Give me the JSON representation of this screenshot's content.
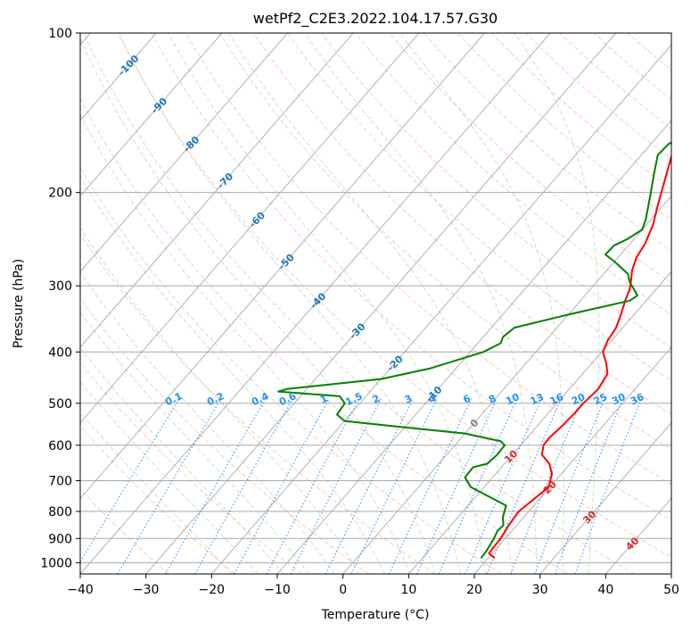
{
  "chart_data": {
    "type": "line",
    "title": "wetPf2_C2E3.2022.104.17.57.G30",
    "xlabel": "Temperature (°C)",
    "ylabel": "Pressure (hPa)",
    "xlim": [
      -40,
      50
    ],
    "ylim": [
      1050,
      100
    ],
    "x_ticks": [
      -40,
      -30,
      -20,
      -10,
      0,
      10,
      20,
      30,
      40,
      50
    ],
    "y_ticks": [
      1000,
      900,
      800,
      700,
      600,
      500,
      400,
      300,
      200,
      100
    ],
    "grid": true,
    "series": [
      {
        "name": "Temperature",
        "color": "#ff0000",
        "points": [
          [
            21,
            980
          ],
          [
            19.5,
            960
          ],
          [
            19.3,
            900
          ],
          [
            18.8,
            850
          ],
          [
            18.5,
            800
          ],
          [
            19.8,
            720
          ],
          [
            18.6,
            680
          ],
          [
            16.8,
            650
          ],
          [
            14.5,
            625
          ],
          [
            13.5,
            600
          ],
          [
            13.4,
            580
          ],
          [
            13.8,
            550
          ],
          [
            14.0,
            520
          ],
          [
            14.0,
            500
          ],
          [
            14.4,
            470
          ],
          [
            13.8,
            440
          ],
          [
            12.2,
            420
          ],
          [
            10.2,
            400
          ],
          [
            9.4,
            380
          ],
          [
            9.0,
            360
          ],
          [
            8.0,
            340
          ],
          [
            6.8,
            320
          ],
          [
            6.0,
            305
          ],
          [
            5.2,
            295
          ],
          [
            3.8,
            280
          ],
          [
            2.8,
            265
          ],
          [
            2.3,
            250
          ],
          [
            1.0,
            230
          ],
          [
            -0.5,
            215
          ],
          [
            -2.0,
            200
          ],
          [
            -3.6,
            185
          ],
          [
            -5.0,
            173
          ],
          [
            -6.6,
            160
          ],
          [
            -7.0,
            157
          ],
          [
            -4.0,
            150
          ],
          [
            -1.2,
            140
          ],
          [
            1.5,
            133
          ],
          [
            3.0,
            127
          ],
          [
            5.0,
            120
          ],
          [
            6.7,
            115
          ],
          [
            8.4,
            110
          ],
          [
            9.7,
            105
          ],
          [
            10.7,
            100
          ]
        ]
      },
      {
        "name": "Dewpoint",
        "color": "#008000",
        "points": [
          [
            18.9,
            980
          ],
          [
            18.8,
            950
          ],
          [
            18.5,
            920
          ],
          [
            18.3,
            900
          ],
          [
            17.8,
            870
          ],
          [
            18.0,
            850
          ],
          [
            16.8,
            820
          ],
          [
            15.8,
            780
          ],
          [
            8.0,
            720
          ],
          [
            5.8,
            690
          ],
          [
            5.7,
            660
          ],
          [
            7.4,
            650
          ],
          [
            7.7,
            625
          ],
          [
            7.6,
            600
          ],
          [
            6.5,
            590
          ],
          [
            0.0,
            570
          ],
          [
            -10.0,
            555
          ],
          [
            -20.0,
            540
          ],
          [
            -22.0,
            525
          ],
          [
            -22.3,
            500
          ],
          [
            -24.0,
            485
          ],
          [
            -34.0,
            475
          ],
          [
            -33.0,
            470
          ],
          [
            -20.0,
            450
          ],
          [
            -14.0,
            430
          ],
          [
            -8.0,
            400
          ],
          [
            -6.5,
            385
          ],
          [
            -7.0,
            375
          ],
          [
            -6.5,
            360
          ],
          [
            0.0,
            340
          ],
          [
            7.5,
            320
          ],
          [
            8.0,
            313
          ],
          [
            5.0,
            295
          ],
          [
            3.7,
            285
          ],
          [
            0.0,
            270
          ],
          [
            -2.3,
            262
          ],
          [
            -2.2,
            252
          ],
          [
            -1.0,
            245
          ],
          [
            0.0,
            235
          ],
          [
            -0.8,
            225
          ],
          [
            -3.0,
            205
          ],
          [
            -5.5,
            185
          ],
          [
            -7.5,
            170
          ],
          [
            -7.3,
            162
          ],
          [
            -6.0,
            156
          ],
          [
            -4.3,
            153
          ],
          [
            -4.8,
            145
          ],
          [
            -5.8,
            135
          ],
          [
            -6.5,
            125
          ],
          [
            -6.2,
            118
          ],
          [
            -4.2,
            114
          ],
          [
            -1.7,
            110
          ],
          [
            0.0,
            106
          ],
          [
            1.8,
            102
          ],
          [
            2.5,
            100
          ]
        ]
      }
    ],
    "background_lines": {
      "dry_adiabats": {
        "color": "#ffa07a",
        "style": "dashed"
      },
      "moist_adiabats": {
        "color": "#8fbc8f",
        "style": "dashed"
      },
      "isotherms": {
        "color": "#808080",
        "style": "solid"
      },
      "mixing_ratio": {
        "color": "#1e90ff",
        "style": "dotted"
      }
    },
    "isotherm_labels": [
      "-100",
      "-90",
      "-80",
      "-70",
      "-60",
      "-50",
      "-40",
      "-30",
      "-20",
      "-10",
      "0",
      "10",
      "20",
      "30",
      "40"
    ],
    "mixing_ratio_labels": [
      "0.1",
      "0.2",
      "0.4",
      "0.6",
      "1",
      "1.5",
      "2",
      "3",
      "4",
      "6",
      "8",
      "10",
      "13",
      "16",
      "20",
      "25",
      "30",
      "36"
    ]
  }
}
